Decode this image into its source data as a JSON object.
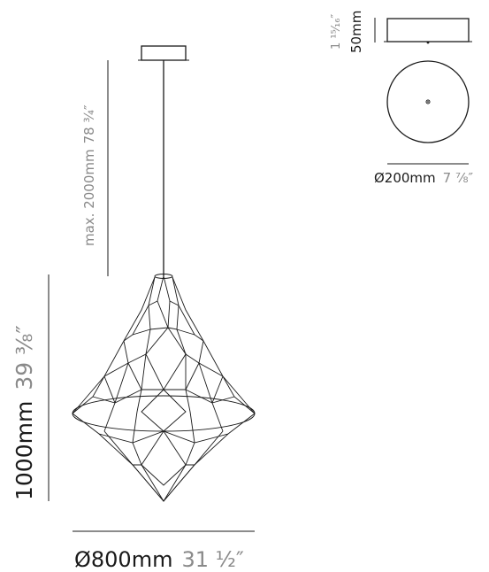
{
  "labels": {
    "cable_length_metric": "max. 2000mm",
    "cable_length_imperial": "78 ¾″",
    "height_metric": "1000mm",
    "height_imperial": "39 ⅜″",
    "width_metric": "Ø800mm",
    "width_imperial": "31 ½″",
    "canopy_height_metric": "50mm",
    "canopy_height_imperial": "1 ¹⁵⁄₁₆″",
    "canopy_diameter_metric": "Ø200mm",
    "canopy_diameter_imperial": "7 ⅞″"
  },
  "colors": {
    "line": "#1a1a1a",
    "secondary_text": "#8a8a8a"
  }
}
